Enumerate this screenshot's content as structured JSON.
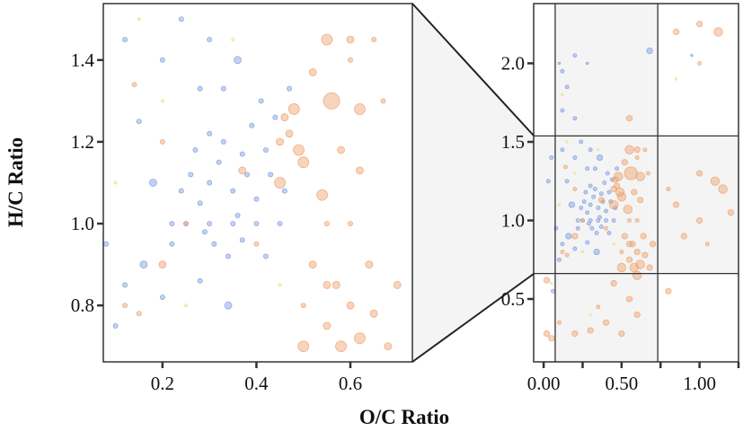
{
  "chart_data": [
    {
      "type": "scatter",
      "panel": "zoomed",
      "xlabel": "O/C Ratio",
      "ylabel": "H/C Ratio",
      "xlim": [
        0.074,
        0.732
      ],
      "ylim": [
        0.662,
        1.538
      ],
      "xticks": [
        0.2,
        0.4,
        0.6
      ],
      "xtick_labels": [
        "0.2",
        "0.4",
        "0.6"
      ],
      "yticks": [
        0.8,
        1.0,
        1.2,
        1.4
      ],
      "ytick_labels": [
        "0.8",
        "1.0",
        "1.2",
        "1.4"
      ],
      "grid": false
    },
    {
      "type": "scatter",
      "panel": "full",
      "xlim": [
        -0.064,
        1.25
      ],
      "ylim": [
        0.1,
        2.38
      ],
      "xticks": [
        0.0,
        0.25,
        0.5,
        0.75,
        1.0,
        1.25
      ],
      "xtick_labels": [
        "0.00",
        "",
        "0.50",
        "",
        "1.00",
        ""
      ],
      "yticks": [
        0.5,
        1.0,
        1.5,
        2.0
      ],
      "ytick_labels": [
        "0.5",
        "1.0",
        "1.5",
        "2.0"
      ],
      "reference_lines": {
        "x": [
          0.074,
          0.732
        ],
        "y": [
          0.662,
          1.538
        ]
      },
      "grid": false
    }
  ],
  "series_colors": {
    "blue": "#7b9be0",
    "orange": "#eea06a",
    "yellow": "#e6e28c"
  },
  "points": {
    "blue": [
      [
        0.3,
        1.1,
        2
      ],
      [
        0.32,
        1.15,
        2
      ],
      [
        0.35,
        1.08,
        2
      ],
      [
        0.28,
        1.05,
        2
      ],
      [
        0.33,
        1.2,
        2
      ],
      [
        0.38,
        1.12,
        2
      ],
      [
        0.36,
        1.02,
        2
      ],
      [
        0.26,
        1.12,
        2
      ],
      [
        0.4,
        1.06,
        2
      ],
      [
        0.42,
        1.18,
        2
      ],
      [
        0.31,
        0.95,
        2
      ],
      [
        0.34,
        0.92,
        2
      ],
      [
        0.29,
        0.98,
        2
      ],
      [
        0.37,
        0.96,
        2
      ],
      [
        0.25,
        1.0,
        2
      ],
      [
        0.3,
        1.0,
        2
      ],
      [
        0.35,
        1.0,
        2
      ],
      [
        0.4,
        1.0,
        2
      ],
      [
        0.45,
        1.0,
        2
      ],
      [
        0.22,
        1.0,
        2
      ],
      [
        0.27,
        1.18,
        2
      ],
      [
        0.39,
        1.24,
        2
      ],
      [
        0.44,
        1.26,
        2
      ],
      [
        0.41,
        1.3,
        2
      ],
      [
        0.47,
        1.33,
        2
      ],
      [
        0.33,
        1.33,
        2
      ],
      [
        0.28,
        1.33,
        2
      ],
      [
        0.18,
        1.1,
        3
      ],
      [
        0.15,
        1.25,
        2
      ],
      [
        0.2,
        1.4,
        2
      ],
      [
        0.12,
        1.45,
        2
      ],
      [
        0.3,
        1.45,
        2
      ],
      [
        0.24,
        1.5,
        2
      ],
      [
        0.36,
        1.4,
        3
      ],
      [
        0.16,
        0.9,
        3
      ],
      [
        0.12,
        0.85,
        2
      ],
      [
        0.1,
        0.75,
        2
      ],
      [
        0.2,
        0.82,
        2
      ],
      [
        0.28,
        0.86,
        2
      ],
      [
        0.34,
        0.8,
        3
      ],
      [
        0.22,
        0.95,
        2
      ],
      [
        0.42,
        0.92,
        2
      ],
      [
        0.3,
        1.22,
        2
      ],
      [
        0.37,
        1.17,
        2
      ],
      [
        0.24,
        1.08,
        2
      ],
      [
        0.43,
        1.12,
        2
      ],
      [
        0.46,
        1.08,
        2
      ],
      [
        0.1,
        2.0,
        1
      ],
      [
        0.12,
        1.95,
        2
      ],
      [
        0.15,
        1.85,
        2
      ],
      [
        0.12,
        1.7,
        2
      ],
      [
        0.2,
        1.65,
        2
      ],
      [
        0.05,
        1.4,
        2
      ],
      [
        0.03,
        1.25,
        2
      ],
      [
        0.08,
        0.95,
        2
      ],
      [
        0.2,
        2.05,
        2
      ],
      [
        0.68,
        2.08,
        3
      ],
      [
        0.06,
        0.55,
        2
      ],
      [
        0.28,
        2.0,
        1
      ],
      [
        0.95,
        2.05,
        1
      ]
    ],
    "orange": [
      [
        0.47,
        1.22,
        3
      ],
      [
        0.49,
        1.18,
        4
      ],
      [
        0.46,
        1.26,
        3
      ],
      [
        0.5,
        1.15,
        4
      ],
      [
        0.45,
        1.2,
        3
      ],
      [
        0.48,
        1.28,
        4
      ],
      [
        0.56,
        1.3,
        5
      ],
      [
        0.62,
        1.28,
        4
      ],
      [
        0.55,
        1.45,
        4
      ],
      [
        0.52,
        1.37,
        3
      ],
      [
        0.6,
        1.4,
        2
      ],
      [
        0.65,
        1.45,
        2
      ],
      [
        0.54,
        1.07,
        4
      ],
      [
        0.58,
        1.18,
        3
      ],
      [
        0.52,
        0.9,
        3
      ],
      [
        0.57,
        0.85,
        3
      ],
      [
        0.6,
        0.8,
        3
      ],
      [
        0.55,
        0.75,
        3
      ],
      [
        0.62,
        0.72,
        4
      ],
      [
        0.65,
        0.78,
        3
      ],
      [
        0.68,
        0.7,
        3
      ],
      [
        0.5,
        0.8,
        2
      ],
      [
        0.58,
        0.7,
        4
      ],
      [
        0.64,
        0.9,
        3
      ],
      [
        0.7,
        0.85,
        3
      ],
      [
        0.2,
        0.9,
        3
      ],
      [
        0.15,
        0.78,
        2
      ],
      [
        0.12,
        0.8,
        2
      ],
      [
        0.25,
        1.0,
        2
      ],
      [
        0.37,
        1.13,
        3
      ],
      [
        0.45,
        1.1,
        4
      ],
      [
        0.62,
        1.13,
        3
      ],
      [
        0.55,
        1.0,
        2
      ],
      [
        0.6,
        1.0,
        2
      ],
      [
        0.67,
        1.3,
        2
      ],
      [
        0.4,
        0.95,
        2
      ],
      [
        0.14,
        1.34,
        2
      ],
      [
        0.2,
        1.2,
        2
      ],
      [
        0.55,
        0.85,
        3
      ],
      [
        0.5,
        0.7,
        4
      ],
      [
        0.6,
        0.65,
        4
      ],
      [
        0.45,
        0.6,
        3
      ],
      [
        0.55,
        0.5,
        3
      ],
      [
        0.6,
        0.4,
        3
      ],
      [
        0.4,
        0.35,
        3
      ],
      [
        0.3,
        0.3,
        3
      ],
      [
        0.2,
        0.28,
        3
      ],
      [
        0.05,
        0.25,
        3
      ],
      [
        0.02,
        0.28,
        3
      ],
      [
        0.1,
        0.35,
        2
      ],
      [
        0.35,
        0.45,
        2
      ],
      [
        0.5,
        0.28,
        3
      ],
      [
        1.0,
        1.3,
        3
      ],
      [
        1.1,
        1.25,
        4
      ],
      [
        1.15,
        1.2,
        4
      ],
      [
        1.2,
        1.05,
        3
      ],
      [
        1.0,
        1.0,
        3
      ],
      [
        0.85,
        1.1,
        3
      ],
      [
        0.9,
        0.9,
        3
      ],
      [
        0.8,
        1.2,
        2
      ],
      [
        1.05,
        0.85,
        2
      ],
      [
        1.12,
        2.2,
        4
      ],
      [
        1.0,
        2.25,
        3
      ],
      [
        0.85,
        2.2,
        3
      ],
      [
        0.55,
        1.65,
        3
      ],
      [
        0.02,
        0.62,
        3
      ],
      [
        0.6,
        1.45,
        3
      ],
      [
        0.8,
        0.55,
        3
      ],
      [
        1.0,
        2.0,
        2
      ]
    ],
    "yellow": [
      [
        0.2,
        1.3,
        1
      ],
      [
        0.35,
        1.45,
        1
      ],
      [
        0.1,
        1.1,
        1
      ],
      [
        0.25,
        0.8,
        1
      ],
      [
        0.45,
        0.85,
        1
      ],
      [
        0.15,
        1.5,
        1
      ],
      [
        0.05,
        0.6,
        1
      ],
      [
        0.12,
        1.8,
        1
      ],
      [
        0.85,
        1.9,
        1
      ],
      [
        0.3,
        0.4,
        1
      ]
    ]
  }
}
